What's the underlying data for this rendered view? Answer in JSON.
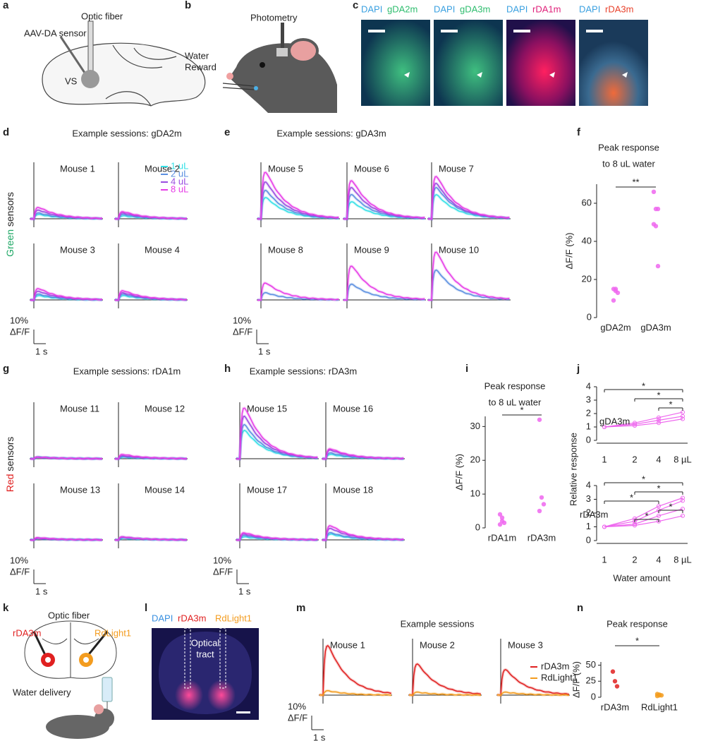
{
  "labels": [
    "a",
    "b",
    "c",
    "d",
    "e",
    "f",
    "g",
    "h",
    "i",
    "j",
    "k",
    "l",
    "m",
    "n"
  ],
  "a": {
    "fiber": "Optic fiber",
    "sensor": "AAV-DA sensor",
    "region": "VS"
  },
  "b": {
    "photometry": "Photometry",
    "reward": [
      "Water",
      "Reward"
    ]
  },
  "c": {
    "images": [
      {
        "stain": "DAPI",
        "sensor": "gDA2m",
        "color": "#2ebd6e"
      },
      {
        "stain": "DAPI",
        "sensor": "gDA3m",
        "color": "#2ebd6e"
      },
      {
        "stain": "DAPI",
        "sensor": "rDA1m",
        "color": "#e0207a"
      },
      {
        "stain": "DAPI",
        "sensor": "rDA3m",
        "color": "#e8402a"
      }
    ]
  },
  "d": {
    "title": "Example sessions: gDA2m",
    "side": [
      "Green",
      "sensors"
    ],
    "series": [
      {
        "name": "1 uL",
        "color": "#33e0e6"
      },
      {
        "name": "2 uL",
        "color": "#5b8fe0"
      },
      {
        "name": "4 uL",
        "color": "#9a4de0"
      },
      {
        "name": "8 uL",
        "color": "#e63ce6"
      }
    ],
    "mice": [
      {
        "name": "Mouse 1",
        "values": [
          3,
          4,
          6,
          8
        ]
      },
      {
        "name": "Mouse 2",
        "values": [
          2,
          3,
          4,
          5
        ]
      },
      {
        "name": "Mouse 3",
        "values": [
          3,
          4,
          6,
          8
        ]
      },
      {
        "name": "Mouse 4",
        "values": [
          3,
          4,
          5,
          6.5
        ]
      }
    ],
    "scale": {
      "value": 10,
      "label": "10%",
      "unit": "ΔF/F",
      "x_value": 1,
      "x_label": "1 s"
    }
  },
  "e": {
    "title": "Example sessions: gDA3m",
    "mice": [
      {
        "name": "Mouse 5",
        "values": [
          15,
          20,
          26,
          33
        ]
      },
      {
        "name": "Mouse 6",
        "values": [
          12,
          17,
          22,
          27
        ]
      },
      {
        "name": "Mouse 7",
        "values": [
          17,
          22,
          25,
          30
        ]
      },
      {
        "name": "Mouse 8",
        "values": [
          null,
          5,
          null,
          12
        ]
      },
      {
        "name": "Mouse 9",
        "values": [
          null,
          11,
          null,
          24
        ]
      },
      {
        "name": "Mouse 10",
        "values": [
          null,
          21,
          null,
          34
        ]
      }
    ],
    "scale": {
      "value": 10,
      "label": "10%",
      "unit": "ΔF/F",
      "x_value": 1,
      "x_label": "1 s"
    }
  },
  "f": {
    "title": [
      "Peak response",
      "to 8 uL water"
    ],
    "ylabel": "ΔF/F (%)",
    "categories": [
      "gDA2m",
      "gDA3m"
    ],
    "values": [
      [
        15,
        14,
        13,
        9,
        15
      ],
      [
        66,
        57,
        57,
        49,
        48,
        27
      ]
    ],
    "colors": [
      "#ee66ee",
      "#ee66ee"
    ],
    "ylim": [
      0,
      70
    ],
    "yticks": [
      0,
      20,
      40,
      60
    ],
    "significance": "**"
  },
  "g": {
    "title": "Example sessions: rDA1m",
    "side": [
      "Red",
      "sensors"
    ],
    "mice": [
      {
        "name": "Mouse 11",
        "values": [
          1,
          1,
          1,
          1
        ]
      },
      {
        "name": "Mouse 12",
        "values": [
          1,
          1.5,
          2,
          3
        ]
      },
      {
        "name": "Mouse 13",
        "values": [
          1,
          1,
          1,
          1.5
        ]
      },
      {
        "name": "Mouse 14",
        "values": [
          1,
          1.5,
          2,
          2
        ]
      }
    ],
    "scale": {
      "value": 10,
      "label": "10%",
      "unit": "ΔF/F",
      "x_value": 1,
      "x_label": "1 s"
    }
  },
  "h": {
    "title": "Example sessions: rDA3m",
    "mice": [
      {
        "name": "Mouse 15",
        "values": [
          20,
          24,
          30,
          36
        ]
      },
      {
        "name": "Mouse 16",
        "values": [
          3,
          4,
          6,
          7
        ]
      },
      {
        "name": "Mouse 17",
        "values": [
          2,
          3,
          4,
          5
        ]
      },
      {
        "name": "Mouse 18",
        "values": [
          4,
          5,
          8,
          10
        ]
      }
    ],
    "scale": {
      "value": 10,
      "label": "10%",
      "unit": "ΔF/F",
      "x_value": 1,
      "x_label": "1 s"
    }
  },
  "i": {
    "title": [
      "Peak response",
      "to 8 uL water"
    ],
    "ylabel": "ΔF/F (%)",
    "categories": [
      "rDA1m",
      "rDA3m"
    ],
    "values": [
      [
        4,
        3,
        1.5,
        1,
        2
      ],
      [
        32,
        9,
        7,
        5
      ]
    ],
    "colors": [
      "#ee66ee",
      "#ee66ee"
    ],
    "ylim": [
      0,
      33
    ],
    "yticks": [
      0,
      10,
      20,
      30
    ],
    "significance": "*"
  },
  "j": {
    "ylabel": "Relative response",
    "xlabel": "Water amount",
    "categories": [
      "1",
      "2",
      "4",
      "8 µL"
    ],
    "color": "#ee66ee",
    "panels": [
      {
        "name": "gDA3m",
        "ylim": [
          0,
          4
        ],
        "yticks": [
          0,
          1,
          2,
          3,
          4
        ],
        "lines": [
          [
            1,
            1.3,
            1.7,
            2.1
          ],
          [
            1,
            1.2,
            1.5,
            1.8
          ],
          [
            1,
            1.1,
            1.3,
            1.6
          ]
        ],
        "brackets": [
          {
            "from": 0,
            "to": 3,
            "label": "*"
          },
          {
            "from": 1,
            "to": 3,
            "label": "*"
          },
          {
            "from": 2,
            "to": 3,
            "label": "*"
          }
        ]
      },
      {
        "name": "rDA3m",
        "ylim": [
          0,
          4
        ],
        "yticks": [
          0,
          1,
          2,
          3,
          4
        ],
        "lines": [
          [
            1,
            1.6,
            2.5,
            3.1
          ],
          [
            1,
            1.4,
            2.2,
            2.9
          ],
          [
            1,
            1.2,
            1.8,
            2.3
          ],
          [
            1,
            1.1,
            1.4,
            1.8
          ]
        ],
        "brackets": [
          {
            "from": 0,
            "to": 3,
            "label": "*"
          },
          {
            "from": 1,
            "to": 3,
            "label": "*"
          },
          {
            "from": 0,
            "to": 2,
            "label": "*"
          },
          {
            "from": 2,
            "to": 3,
            "label": "*"
          },
          {
            "from": 1,
            "to": 2,
            "label": "*"
          }
        ]
      }
    ]
  },
  "k": {
    "fiber": "Optic fiber",
    "left": "rDA3m",
    "right": "RdLight1",
    "water": "Water delivery"
  },
  "l": {
    "stain": "DAPI",
    "red": "rDA3m",
    "orange": "RdLight1",
    "tract": [
      "Optical",
      "tract"
    ]
  },
  "m": {
    "title": "Example sessions",
    "series": [
      {
        "name": "rDA3m",
        "color": "#e02020"
      },
      {
        "name": "RdLight1",
        "color": "#f39c1f"
      }
    ],
    "mice": [
      {
        "name": "Mouse 1",
        "values": [
          35,
          3
        ]
      },
      {
        "name": "Mouse 2",
        "values": [
          22,
          2
        ]
      },
      {
        "name": "Mouse 3",
        "values": [
          18,
          2
        ]
      }
    ],
    "scale": {
      "value": 10,
      "label": "10%",
      "unit": "ΔF/F",
      "x_value": 1,
      "x_label": "1 s"
    }
  },
  "n": {
    "title": "Peak response",
    "ylabel": "ΔF/F (%)",
    "categories": [
      "rDA3m",
      "RdLight1"
    ],
    "values": [
      [
        40,
        25,
        17
      ],
      [
        5,
        4,
        3,
        2,
        3
      ]
    ],
    "colors": [
      "#e02020",
      "#f39c1f"
    ],
    "ylim": [
      0,
      55
    ],
    "yticks": [
      0,
      25,
      50
    ],
    "significance": "*"
  }
}
